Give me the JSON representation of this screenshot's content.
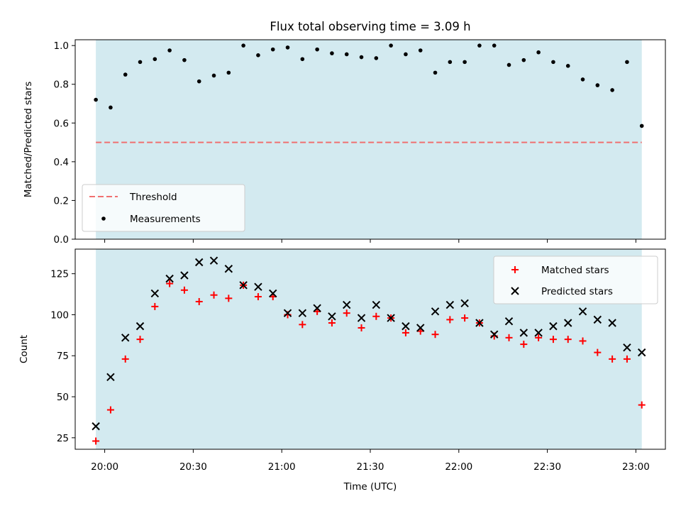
{
  "chart_data": [
    {
      "type": "scatter",
      "panel": "top",
      "title": "Flux total observing time = 3.09 h",
      "ylabel": "Matched/Predicted stars",
      "xlabel": "",
      "ylim": [
        0,
        1.03
      ],
      "yticks": [
        0.0,
        0.2,
        0.4,
        0.6,
        0.8,
        1.0
      ],
      "ytick_labels": [
        "0.0",
        "0.2",
        "0.4",
        "0.6",
        "0.8",
        "1.0"
      ],
      "shaded_span": [
        "19:57",
        "23:02"
      ],
      "shade_color": "#d3eaf0",
      "threshold": {
        "name": "Threshold",
        "value": 0.5,
        "color": "#f07070",
        "style": "dashed"
      },
      "legend_position": "lower-left",
      "series": [
        {
          "name": "Measurements",
          "marker": "dot",
          "color": "#000000",
          "x": [
            "19:57",
            "20:02",
            "20:07",
            "20:12",
            "20:17",
            "20:22",
            "20:27",
            "20:32",
            "20:37",
            "20:42",
            "20:47",
            "20:52",
            "20:57",
            "21:02",
            "21:07",
            "21:12",
            "21:17",
            "21:22",
            "21:27",
            "21:32",
            "21:37",
            "21:42",
            "21:47",
            "21:52",
            "21:57",
            "22:02",
            "22:07",
            "22:12",
            "22:17",
            "22:22",
            "22:27",
            "22:32",
            "22:37",
            "22:42",
            "22:47",
            "22:52",
            "22:57",
            "23:02"
          ],
          "y": [
            0.72,
            0.68,
            0.85,
            0.915,
            0.93,
            0.975,
            0.925,
            0.815,
            0.845,
            0.86,
            1.0,
            0.95,
            0.98,
            0.99,
            0.93,
            0.98,
            0.96,
            0.955,
            0.94,
            0.935,
            1.0,
            0.955,
            0.975,
            0.86,
            0.915,
            0.915,
            1.0,
            1.0,
            0.9,
            0.925,
            0.965,
            0.915,
            0.895,
            0.825,
            0.795,
            0.77,
            0.915,
            0.585
          ]
        }
      ]
    },
    {
      "type": "scatter",
      "panel": "bottom",
      "title": "",
      "xlabel": "Time (UTC)",
      "ylabel": "Count",
      "ylim": [
        18,
        140
      ],
      "yticks": [
        25,
        50,
        75,
        100,
        125
      ],
      "ytick_labels": [
        "25",
        "50",
        "75",
        "100",
        "125"
      ],
      "xlim": [
        "19:50",
        "23:10"
      ],
      "xticks": [
        "19:60",
        "20:30",
        "21:00",
        "21:30",
        "22:00",
        "22:30",
        "23:00"
      ],
      "xtick_labels": [
        "20:00",
        "20:30",
        "21:00",
        "21:30",
        "22:00",
        "22:30",
        "23:00"
      ],
      "shaded_span": [
        "19:57",
        "23:02"
      ],
      "shade_color": "#d3eaf0",
      "legend_position": "upper-right",
      "series": [
        {
          "name": "Matched stars",
          "marker": "plus",
          "color": "#ff0000",
          "x": [
            "19:57",
            "20:02",
            "20:07",
            "20:12",
            "20:17",
            "20:22",
            "20:27",
            "20:32",
            "20:37",
            "20:42",
            "20:47",
            "20:52",
            "20:57",
            "21:02",
            "21:07",
            "21:12",
            "21:17",
            "21:22",
            "21:27",
            "21:32",
            "21:37",
            "21:42",
            "21:47",
            "21:52",
            "21:57",
            "22:02",
            "22:07",
            "22:12",
            "22:17",
            "22:22",
            "22:27",
            "22:32",
            "22:37",
            "22:42",
            "22:47",
            "22:52",
            "22:57",
            "23:02"
          ],
          "y": [
            23,
            42,
            73,
            85,
            105,
            119,
            115,
            108,
            112,
            110,
            118,
            111,
            111,
            100,
            94,
            102,
            95,
            101,
            92,
            99,
            98,
            89,
            90,
            88,
            97,
            98,
            95,
            87,
            86,
            82,
            86,
            85,
            85,
            84,
            77,
            73,
            73,
            45
          ]
        },
        {
          "name": "Predicted stars",
          "marker": "x",
          "color": "#000000",
          "x": [
            "19:57",
            "20:02",
            "20:07",
            "20:12",
            "20:17",
            "20:22",
            "20:27",
            "20:32",
            "20:37",
            "20:42",
            "20:47",
            "20:52",
            "20:57",
            "21:02",
            "21:07",
            "21:12",
            "21:17",
            "21:22",
            "21:27",
            "21:32",
            "21:37",
            "21:42",
            "21:47",
            "21:52",
            "21:57",
            "22:02",
            "22:07",
            "22:12",
            "22:17",
            "22:22",
            "22:27",
            "22:32",
            "22:37",
            "22:42",
            "22:47",
            "22:52",
            "22:57",
            "23:02"
          ],
          "y": [
            32,
            62,
            86,
            93,
            113,
            122,
            124,
            132,
            133,
            128,
            118,
            117,
            113,
            101,
            101,
            104,
            99,
            106,
            98,
            106,
            98,
            93,
            92,
            102,
            106,
            107,
            95,
            88,
            96,
            89,
            89,
            93,
            95,
            102,
            97,
            95,
            80,
            77
          ]
        }
      ]
    }
  ]
}
